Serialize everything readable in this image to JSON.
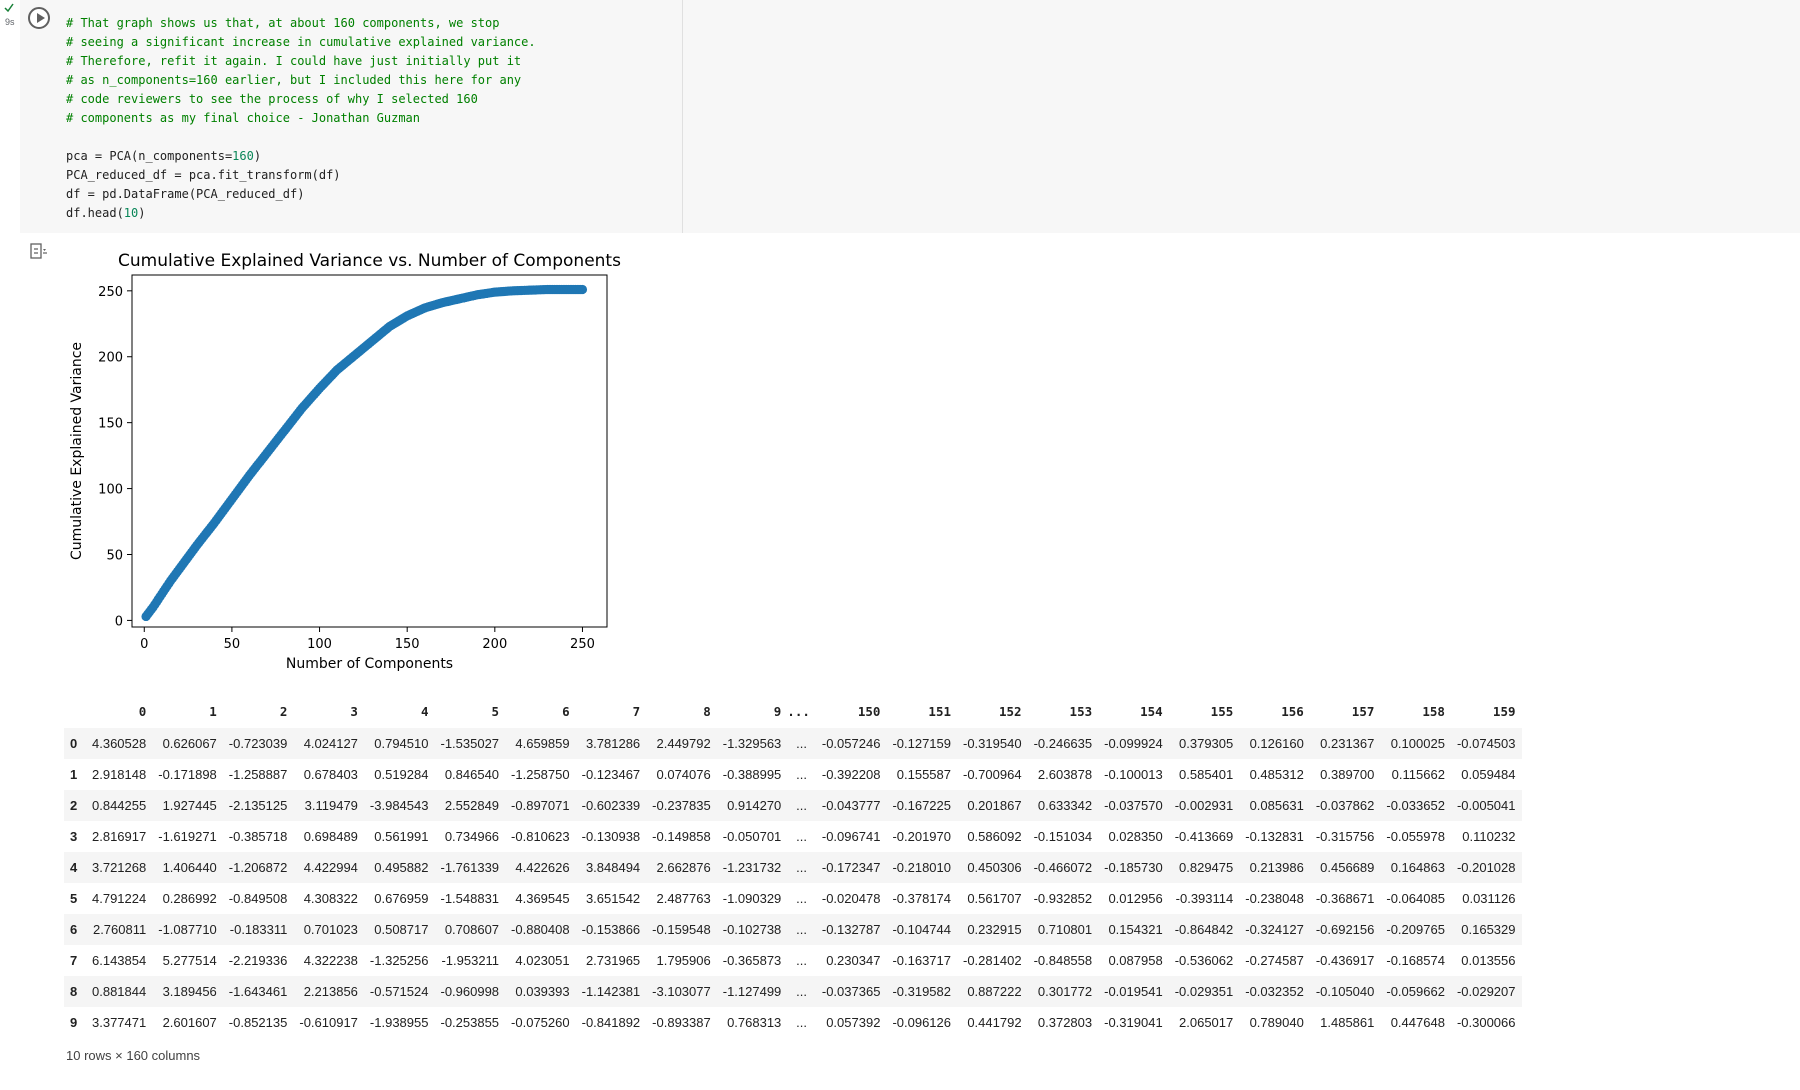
{
  "cell": {
    "exec_time": "9s",
    "code_lines": [
      {
        "type": "comment",
        "text": "# That graph shows us that, at about 160 components, we stop"
      },
      {
        "type": "comment",
        "text": "# seeing a significant increase in cumulative explained variance."
      },
      {
        "type": "comment",
        "text": "# Therefore, refit it again. I could have just initially put it"
      },
      {
        "type": "comment",
        "text": "# as n_components=160 earlier, but I included this here for any"
      },
      {
        "type": "comment",
        "text": "# code reviewers to see the process of why I selected 160"
      },
      {
        "type": "comment",
        "text": "# components as my final choice - Jonathan Guzman"
      },
      {
        "type": "blank",
        "text": ""
      },
      {
        "type": "code",
        "pre": "pca = PCA(n_components=",
        "num": "160",
        "post": ")"
      },
      {
        "type": "code",
        "pre": "PCA_reduced_df = pca.fit_transform(df)",
        "num": "",
        "post": ""
      },
      {
        "type": "code",
        "pre": "df = pd.DataFrame(PCA_reduced_df)",
        "num": "",
        "post": ""
      },
      {
        "type": "code",
        "pre": "df.head(",
        "num": "10",
        "post": ")"
      }
    ]
  },
  "chart_data": {
    "type": "scatter",
    "title": "Cumulative Explained Variance vs. Number of Components",
    "xlabel": "Number of Components",
    "ylabel": "Cumulative Explained Variance",
    "xlim": [
      -7,
      264
    ],
    "ylim": [
      -5,
      262
    ],
    "xticks": [
      0,
      50,
      100,
      150,
      200,
      250
    ],
    "yticks": [
      0,
      50,
      100,
      150,
      200,
      250
    ],
    "grid": false,
    "color": "#1f77b4",
    "x": [
      1,
      5,
      10,
      15,
      20,
      25,
      30,
      40,
      50,
      60,
      70,
      80,
      90,
      100,
      110,
      120,
      130,
      140,
      150,
      160,
      170,
      180,
      190,
      200,
      210,
      220,
      230,
      240,
      250
    ],
    "y": [
      3,
      10,
      20,
      30,
      39,
      48,
      57,
      74,
      92,
      110,
      127,
      144,
      161,
      176,
      190,
      201,
      212,
      223,
      231,
      237,
      241,
      244,
      247,
      249,
      250,
      250.5,
      251,
      251,
      251
    ]
  },
  "dataframe": {
    "columns": [
      "0",
      "1",
      "2",
      "3",
      "4",
      "5",
      "6",
      "7",
      "8",
      "9",
      "...",
      "150",
      "151",
      "152",
      "153",
      "154",
      "155",
      "156",
      "157",
      "158",
      "159"
    ],
    "rows": [
      {
        "index": "0",
        "cells": [
          "4.360528",
          "0.626067",
          "-0.723039",
          "4.024127",
          "0.794510",
          "-1.535027",
          "4.659859",
          "3.781286",
          "2.449792",
          "-1.329563",
          "...",
          "-0.057246",
          "-0.127159",
          "-0.319540",
          "-0.246635",
          "-0.099924",
          "0.379305",
          "0.126160",
          "0.231367",
          "0.100025",
          "-0.074503"
        ]
      },
      {
        "index": "1",
        "cells": [
          "2.918148",
          "-0.171898",
          "-1.258887",
          "0.678403",
          "0.519284",
          "0.846540",
          "-1.258750",
          "-0.123467",
          "0.074076",
          "-0.388995",
          "...",
          "-0.392208",
          "0.155587",
          "-0.700964",
          "2.603878",
          "-0.100013",
          "0.585401",
          "0.485312",
          "0.389700",
          "0.115662",
          "0.059484"
        ]
      },
      {
        "index": "2",
        "cells": [
          "0.844255",
          "1.927445",
          "-2.135125",
          "3.119479",
          "-3.984543",
          "2.552849",
          "-0.897071",
          "-0.602339",
          "-0.237835",
          "0.914270",
          "...",
          "-0.043777",
          "-0.167225",
          "0.201867",
          "0.633342",
          "-0.037570",
          "-0.002931",
          "0.085631",
          "-0.037862",
          "-0.033652",
          "-0.005041"
        ]
      },
      {
        "index": "3",
        "cells": [
          "2.816917",
          "-1.619271",
          "-0.385718",
          "0.698489",
          "0.561991",
          "0.734966",
          "-0.810623",
          "-0.130938",
          "-0.149858",
          "-0.050701",
          "...",
          "-0.096741",
          "-0.201970",
          "0.586092",
          "-0.151034",
          "0.028350",
          "-0.413669",
          "-0.132831",
          "-0.315756",
          "-0.055978",
          "0.110232"
        ]
      },
      {
        "index": "4",
        "cells": [
          "3.721268",
          "1.406440",
          "-1.206872",
          "4.422994",
          "0.495882",
          "-1.761339",
          "4.422626",
          "3.848494",
          "2.662876",
          "-1.231732",
          "...",
          "-0.172347",
          "-0.218010",
          "0.450306",
          "-0.466072",
          "-0.185730",
          "0.829475",
          "0.213986",
          "0.456689",
          "0.164863",
          "-0.201028"
        ]
      },
      {
        "index": "5",
        "cells": [
          "4.791224",
          "0.286992",
          "-0.849508",
          "4.308322",
          "0.676959",
          "-1.548831",
          "4.369545",
          "3.651542",
          "2.487763",
          "-1.090329",
          "...",
          "-0.020478",
          "-0.378174",
          "0.561707",
          "-0.932852",
          "0.012956",
          "-0.393114",
          "-0.238048",
          "-0.368671",
          "-0.064085",
          "0.031126"
        ]
      },
      {
        "index": "6",
        "cells": [
          "2.760811",
          "-1.087710",
          "-0.183311",
          "0.701023",
          "0.508717",
          "0.708607",
          "-0.880408",
          "-0.153866",
          "-0.159548",
          "-0.102738",
          "...",
          "-0.132787",
          "-0.104744",
          "0.232915",
          "0.710801",
          "0.154321",
          "-0.864842",
          "-0.324127",
          "-0.692156",
          "-0.209765",
          "0.165329"
        ]
      },
      {
        "index": "7",
        "cells": [
          "6.143854",
          "5.277514",
          "-2.219336",
          "4.322238",
          "-1.325256",
          "-1.953211",
          "4.023051",
          "2.731965",
          "1.795906",
          "-0.365873",
          "...",
          "0.230347",
          "-0.163717",
          "-0.281402",
          "-0.848558",
          "0.087958",
          "-0.536062",
          "-0.274587",
          "-0.436917",
          "-0.168574",
          "0.013556"
        ]
      },
      {
        "index": "8",
        "cells": [
          "0.881844",
          "3.189456",
          "-1.643461",
          "2.213856",
          "-0.571524",
          "-0.960998",
          "0.039393",
          "-1.142381",
          "-3.103077",
          "-1.127499",
          "...",
          "-0.037365",
          "-0.319582",
          "0.887222",
          "0.301772",
          "-0.019541",
          "-0.029351",
          "-0.032352",
          "-0.105040",
          "-0.059662",
          "-0.029207"
        ]
      },
      {
        "index": "9",
        "cells": [
          "3.377471",
          "2.601607",
          "-0.852135",
          "-0.610917",
          "-1.938955",
          "-0.253855",
          "-0.075260",
          "-0.841892",
          "-0.893387",
          "0.768313",
          "...",
          "0.057392",
          "-0.096126",
          "0.441792",
          "0.372803",
          "-0.319041",
          "2.065017",
          "0.789040",
          "1.485861",
          "0.447648",
          "-0.300066"
        ]
      }
    ],
    "caption": "10 rows × 160 columns"
  }
}
